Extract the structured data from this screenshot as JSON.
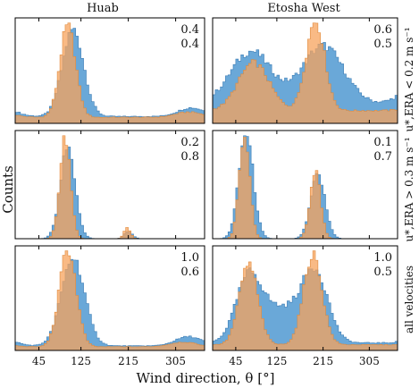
{
  "figure": {
    "xlabel": "Wind direction, θ [°]",
    "ylabel": "Counts",
    "column_titles": [
      "Huab",
      "Etosha West"
    ],
    "row_labels": [
      "u*,ERA < 0.2 m s⁻¹",
      "u*,ERA > 0.3 m s⁻¹",
      "all velocities"
    ],
    "x_tick_labels": [
      "45",
      "125",
      "215",
      "305"
    ],
    "colors": {
      "blue": "#5a9fd4",
      "orange": "#f7a35c",
      "overlap": "#b38b6d"
    }
  },
  "chart_data": [
    {
      "type": "histogram",
      "title": "Huab",
      "row": "u*,ERA < 0.2 m s⁻¹",
      "annotations": [
        "0.4",
        "0.4"
      ],
      "xlim": [
        0,
        360
      ],
      "x_ticks": [
        45,
        125,
        215,
        305
      ],
      "series": [
        {
          "color": "blue",
          "peaks": [
            [
              110,
              1.0,
              20
            ],
            [
              335,
              0.1,
              25
            ]
          ],
          "base": 0.08
        },
        {
          "color": "orange",
          "peaks": [
            [
              100,
              1.05,
              15
            ],
            [
              330,
              0.06,
              25
            ]
          ],
          "base": 0.07
        }
      ]
    },
    {
      "type": "histogram",
      "title": "Etosha West",
      "row": "u*,ERA < 0.2 m s⁻¹",
      "annotations": [
        "0.6",
        "0.5"
      ],
      "xlim": [
        0,
        360
      ],
      "x_ticks": [
        45,
        125,
        215,
        305
      ],
      "series": [
        {
          "color": "blue",
          "peaks": [
            [
              75,
              0.5,
              40
            ],
            [
              215,
              0.55,
              40
            ]
          ],
          "base": 0.18
        },
        {
          "color": "orange",
          "peaks": [
            [
              80,
              0.45,
              30
            ],
            [
              200,
              0.85,
              18
            ]
          ],
          "base": 0.12
        }
      ]
    },
    {
      "type": "histogram",
      "title": "Huab",
      "row": "u*,ERA > 0.3 m s⁻¹",
      "annotations": [
        "0.2",
        "0.8"
      ],
      "xlim": [
        0,
        360
      ],
      "x_ticks": [
        45,
        125,
        215,
        305
      ],
      "series": [
        {
          "color": "blue",
          "peaks": [
            [
              100,
              1.0,
              14
            ],
            [
              215,
              0.08,
              8
            ]
          ],
          "base": 0.0
        },
        {
          "color": "orange",
          "peaks": [
            [
              95,
              1.1,
              10
            ],
            [
              213,
              0.12,
              6
            ]
          ],
          "base": 0.0
        }
      ]
    },
    {
      "type": "histogram",
      "title": "Etosha West",
      "row": "u*,ERA > 0.3 m s⁻¹",
      "annotations": [
        "0.1",
        "0.7"
      ],
      "xlim": [
        0,
        360
      ],
      "x_ticks": [
        45,
        125,
        215,
        305
      ],
      "series": [
        {
          "color": "blue",
          "peaks": [
            [
              65,
              1.0,
              14
            ],
            [
              205,
              0.6,
              14
            ]
          ],
          "base": 0.0
        },
        {
          "color": "orange",
          "peaks": [
            [
              62,
              1.0,
              10
            ],
            [
              200,
              0.65,
              10
            ]
          ],
          "base": 0.0
        }
      ]
    },
    {
      "type": "histogram",
      "title": "Huab",
      "row": "all velocities",
      "annotations": [
        "1.0",
        "0.6"
      ],
      "xlim": [
        0,
        360
      ],
      "x_ticks": [
        45,
        125,
        215,
        305
      ],
      "series": [
        {
          "color": "blue",
          "peaks": [
            [
              110,
              0.95,
              22
            ],
            [
              330,
              0.1,
              25
            ]
          ],
          "base": 0.05
        },
        {
          "color": "orange",
          "peaks": [
            [
              100,
              1.05,
              16
            ],
            [
              320,
              0.05,
              25
            ]
          ],
          "base": 0.04
        }
      ]
    },
    {
      "type": "histogram",
      "title": "Etosha West",
      "row": "all velocities",
      "annotations": [
        "1.0",
        "0.5"
      ],
      "xlim": [
        0,
        360
      ],
      "x_ticks": [
        45,
        125,
        215,
        305
      ],
      "series": [
        {
          "color": "blue",
          "peaks": [
            [
              70,
              0.65,
              25
            ],
            [
              200,
              0.7,
              25
            ],
            [
              135,
              0.35,
              40
            ]
          ],
          "base": 0.08
        },
        {
          "color": "orange",
          "peaks": [
            [
              70,
              0.85,
              18
            ],
            [
              195,
              0.95,
              18
            ]
          ],
          "base": 0.06
        }
      ]
    }
  ]
}
